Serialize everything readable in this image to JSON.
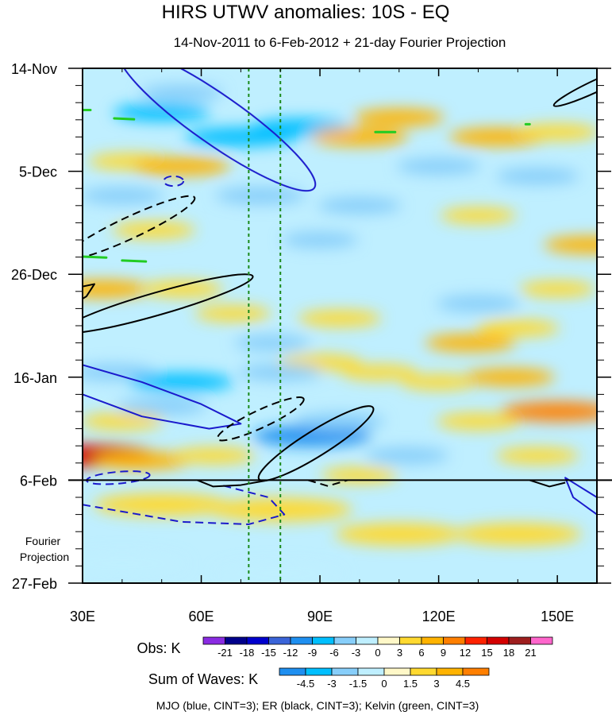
{
  "chart_data": {
    "type": "heatmap",
    "title": "HIRS UTWV anomalies: 10S - EQ",
    "subtitle": "14-Nov-2011 to 6-Feb-2012 + 21-day Fourier Projection",
    "x_axis": {
      "range": [
        30,
        160
      ],
      "ticks": [
        {
          "value": 30,
          "label": "30E"
        },
        {
          "value": 60,
          "label": "60E"
        },
        {
          "value": 90,
          "label": "90E"
        },
        {
          "value": 120,
          "label": "120E"
        },
        {
          "value": 150,
          "label": "150E"
        }
      ]
    },
    "y_axis": {
      "range_days": [
        0,
        105
      ],
      "ticks": [
        {
          "day": 0,
          "label": "14-Nov"
        },
        {
          "day": 21,
          "label": "5-Dec"
        },
        {
          "day": 42,
          "label": "26-Dec"
        },
        {
          "day": 63,
          "label": "16-Jan"
        },
        {
          "day": 84,
          "label": "6-Feb"
        },
        {
          "day": 105,
          "label": "27-Feb"
        }
      ]
    },
    "observation_end_day": 84,
    "projection_label": "Fourier\nProjection",
    "reference_lines_lon": [
      72,
      80
    ],
    "obs_colorbar": {
      "label": "Obs: K",
      "levels": [
        "-21",
        "-18",
        "-15",
        "-12",
        "-9",
        "-6",
        "-3",
        "0",
        "3",
        "6",
        "9",
        "12",
        "15",
        "18",
        "21"
      ],
      "colors": [
        "#8a2be2",
        "#00008b",
        "#0000cd",
        "#3a64d8",
        "#1e8ff0",
        "#00bfff",
        "#87cefa",
        "#bfefff",
        "#fff8c8",
        "#ffd930",
        "#ffb300",
        "#ff7f00",
        "#ff2200",
        "#d40000",
        "#9e1e1e",
        "#ff66cc"
      ]
    },
    "waves_colorbar": {
      "label": "Sum of Waves: K",
      "levels": [
        "-4.5",
        "-3",
        "-1.5",
        "0",
        "1.5",
        "3",
        "4.5"
      ],
      "colors": [
        "#1e8ff0",
        "#00bfff",
        "#87cefa",
        "#bfefff",
        "#fff8c8",
        "#ffd930",
        "#ffb300",
        "#ff7f00"
      ]
    },
    "contour_legend": "MJO (blue, CINT=3); ER (black, CINT=3); Kelvin (green, CINT=3)",
    "wave_contours": [
      {
        "wave": "MJO",
        "color": "#1a1acc",
        "dashed": false,
        "center": [
          64,
          10.5
        ],
        "rx": 30,
        "ry": 5,
        "angle_deg": 35
      },
      {
        "wave": "MJO",
        "color": "#1a1acc",
        "dashed": false,
        "open_arc": true,
        "points": [
          [
            30,
            60.5
          ],
          [
            45,
            64
          ],
          [
            60,
            68.5
          ],
          [
            70,
            72.5
          ],
          [
            62,
            73.5
          ],
          [
            45,
            71
          ],
          [
            30,
            66.5
          ]
        ]
      },
      {
        "wave": "MJO",
        "color": "#1a1acc",
        "dashed": true,
        "center": [
          39,
          83.5
        ],
        "rx": 8,
        "ry": 1.2,
        "angle_deg": -5
      },
      {
        "wave": "MJO",
        "color": "#1a1acc",
        "dashed": true,
        "open_arc": true,
        "points": [
          [
            30,
            89
          ],
          [
            55,
            92.5
          ],
          [
            72,
            93
          ],
          [
            81,
            91
          ],
          [
            77,
            87.5
          ],
          [
            65,
            85
          ]
        ]
      },
      {
        "wave": "MJO",
        "color": "#1a1acc",
        "dashed": false,
        "open_arc": true,
        "points": [
          [
            160,
            87.5
          ],
          [
            155,
            85
          ],
          [
            152,
            83.5
          ],
          [
            154,
            87.5
          ],
          [
            160,
            91
          ]
        ]
      },
      {
        "wave": "MJO",
        "color": "#1a1acc",
        "dashed": true,
        "center": [
          53,
          23
        ],
        "rx": 2.5,
        "ry": 1,
        "angle_deg": 0
      },
      {
        "wave": "ER",
        "color": "#000000",
        "dashed": true,
        "center": [
          42,
          32.5
        ],
        "rx": 18,
        "ry": 2.2,
        "angle_deg": -25
      },
      {
        "wave": "ER",
        "color": "#000000",
        "dashed": false,
        "center": [
          49,
          48
        ],
        "rx": 25,
        "ry": 2.3,
        "angle_deg": -16
      },
      {
        "wave": "ER",
        "color": "#000000",
        "dashed": false,
        "open_arc": true,
        "points": [
          [
            30,
            44.5
          ],
          [
            33,
            44
          ],
          [
            31,
            46.5
          ],
          [
            30,
            47
          ]
        ]
      },
      {
        "wave": "ER",
        "color": "#000000",
        "dashed": true,
        "center": [
          75,
          71.5
        ],
        "rx": 12,
        "ry": 1.8,
        "angle_deg": -25
      },
      {
        "wave": "ER",
        "color": "#000000",
        "dashed": false,
        "center": [
          89,
          76.5
        ],
        "rx": 17,
        "ry": 2.6,
        "angle_deg": -32
      },
      {
        "wave": "ER",
        "color": "#000000",
        "dashed": false,
        "center": [
          160,
          3.5
        ],
        "rx": 12,
        "ry": 1.2,
        "angle_deg": -25
      },
      {
        "wave": "ER",
        "color": "#000000",
        "dashed": false,
        "open_arc": true,
        "points": [
          [
            59,
            84
          ],
          [
            63,
            85.3
          ],
          [
            70,
            85
          ],
          [
            77,
            84
          ]
        ]
      },
      {
        "wave": "ER",
        "color": "#000000",
        "dashed": true,
        "open_arc": true,
        "points": [
          [
            87,
            84
          ],
          [
            92,
            85.2
          ],
          [
            97,
            84
          ]
        ]
      },
      {
        "wave": "ER",
        "color": "#000000",
        "dashed": false,
        "open_arc": true,
        "points": [
          [
            143,
            84
          ],
          [
            148,
            85.3
          ],
          [
            152,
            84.5
          ]
        ]
      },
      {
        "wave": "Kelvin",
        "color": "#22cc22",
        "dashed": false,
        "segment": [
          [
            38,
            10.2
          ],
          [
            43,
            10.4
          ]
        ]
      },
      {
        "wave": "Kelvin",
        "color": "#22cc22",
        "dashed": false,
        "segment": [
          [
            30,
            38.4
          ],
          [
            36,
            38.6
          ]
        ]
      },
      {
        "wave": "Kelvin",
        "color": "#22cc22",
        "dashed": false,
        "segment": [
          [
            40,
            39.2
          ],
          [
            46,
            39.4
          ]
        ]
      },
      {
        "wave": "Kelvin",
        "color": "#22cc22",
        "dashed": false,
        "segment": [
          [
            104,
            13
          ]
        ],
        "len": 5
      },
      {
        "wave": "Kelvin",
        "color": "#22cc22",
        "dashed": false,
        "segment": [
          [
            142,
            11.4
          ],
          [
            143,
            11.4
          ]
        ]
      },
      {
        "wave": "Kelvin",
        "color": "#22cc22",
        "dashed": false,
        "segment": [
          [
            30,
            8.5
          ],
          [
            32,
            8.5
          ]
        ]
      }
    ],
    "anomaly_features": [
      {
        "lon": 50,
        "day": 9,
        "value": -7
      },
      {
        "lon": 55,
        "day": 5,
        "value": -5
      },
      {
        "lon": 70,
        "day": 14,
        "value": -9
      },
      {
        "lon": 85,
        "day": 12,
        "value": -7
      },
      {
        "lon": 100,
        "day": 14,
        "value": 7
      },
      {
        "lon": 110,
        "day": 10,
        "value": 6
      },
      {
        "lon": 135,
        "day": 14,
        "value": 7
      },
      {
        "lon": 150,
        "day": 13,
        "value": 5
      },
      {
        "lon": 42,
        "day": 19,
        "value": 5
      },
      {
        "lon": 55,
        "day": 20,
        "value": 7
      },
      {
        "lon": 120,
        "day": 20,
        "value": -5
      },
      {
        "lon": 145,
        "day": 22,
        "value": -5
      },
      {
        "lon": 40,
        "day": 26,
        "value": -5
      },
      {
        "lon": 75,
        "day": 26,
        "value": -6
      },
      {
        "lon": 100,
        "day": 28,
        "value": -5
      },
      {
        "lon": 130,
        "day": 30,
        "value": 4
      },
      {
        "lon": 48,
        "day": 33,
        "value": 5
      },
      {
        "lon": 90,
        "day": 35,
        "value": -4
      },
      {
        "lon": 158,
        "day": 36,
        "value": 6
      },
      {
        "lon": 35,
        "day": 45,
        "value": 7
      },
      {
        "lon": 55,
        "day": 45,
        "value": 5
      },
      {
        "lon": 68,
        "day": 50,
        "value": 4
      },
      {
        "lon": 95,
        "day": 51,
        "value": 5
      },
      {
        "lon": 130,
        "day": 48,
        "value": -5
      },
      {
        "lon": 150,
        "day": 45,
        "value": 4
      },
      {
        "lon": 78,
        "day": 56,
        "value": -4
      },
      {
        "lon": 90,
        "day": 60,
        "value": 5
      },
      {
        "lon": 140,
        "day": 53,
        "value": 5
      },
      {
        "lon": 128,
        "day": 56,
        "value": 6
      },
      {
        "lon": 38,
        "day": 62,
        "value": -5
      },
      {
        "lon": 55,
        "day": 64,
        "value": -8
      },
      {
        "lon": 50,
        "day": 69,
        "value": -6
      },
      {
        "lon": 80,
        "day": 62,
        "value": -5
      },
      {
        "lon": 105,
        "day": 62,
        "value": 4
      },
      {
        "lon": 120,
        "day": 64,
        "value": 4
      },
      {
        "lon": 138,
        "day": 63,
        "value": 6
      },
      {
        "lon": 40,
        "day": 72,
        "value": 5
      },
      {
        "lon": 88,
        "day": 75,
        "value": -10
      },
      {
        "lon": 95,
        "day": 72,
        "value": -6
      },
      {
        "lon": 150,
        "day": 70,
        "value": 9
      },
      {
        "lon": 130,
        "day": 72,
        "value": 5
      },
      {
        "lon": 32,
        "day": 79,
        "value": 15
      },
      {
        "lon": 45,
        "day": 80,
        "value": 7
      },
      {
        "lon": 112,
        "day": 79,
        "value": -5
      },
      {
        "lon": 145,
        "day": 79,
        "value": 5
      },
      {
        "lon": 63,
        "day": 79,
        "value": 5
      },
      {
        "lon": 100,
        "day": 83,
        "value": 4
      },
      {
        "lon": 50,
        "day": 89,
        "value": 2
      },
      {
        "lon": 80,
        "day": 90,
        "value": 2.5
      },
      {
        "lon": 110,
        "day": 95,
        "value": 1.5
      },
      {
        "lon": 40,
        "day": 101,
        "value": -1.5
      },
      {
        "lon": 80,
        "day": 103,
        "value": -1.5
      },
      {
        "lon": 140,
        "day": 95,
        "value": 1.5
      }
    ]
  }
}
